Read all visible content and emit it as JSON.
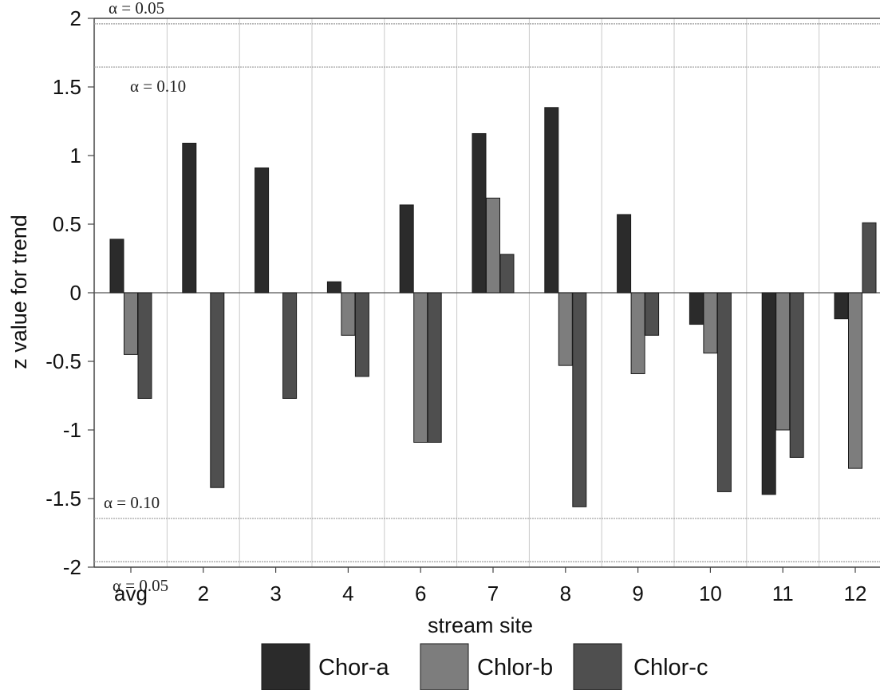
{
  "chart_data": {
    "type": "bar",
    "title": "",
    "xlabel": "stream site",
    "ylabel": "z value for trend",
    "ylim": [
      -2,
      2
    ],
    "yticks": [
      {
        "value": 2,
        "label": "2"
      },
      {
        "value": 1.5,
        "label": "1.5"
      },
      {
        "value": 1,
        "label": "1"
      },
      {
        "value": 0.5,
        "label": "0.5"
      },
      {
        "value": 0,
        "label": "0"
      },
      {
        "value": -0.5,
        "label": "-0.5"
      },
      {
        "value": -1,
        "label": "-1"
      },
      {
        "value": -1.5,
        "label": "-1.5"
      },
      {
        "value": -2,
        "label": "-2"
      }
    ],
    "categories": [
      "avg",
      "2",
      "3",
      "4",
      "6",
      "7",
      "8",
      "9",
      "10",
      "11",
      "12"
    ],
    "series": [
      {
        "name": "Chor-a",
        "color": "#2b2b2b",
        "values": [
          0.39,
          1.09,
          0.91,
          0.08,
          0.64,
          1.16,
          1.35,
          0.57,
          -0.23,
          -1.47,
          -0.19
        ]
      },
      {
        "name": "Chlor-b",
        "color": "#7d7d7d",
        "values": [
          -0.45,
          0,
          0,
          -0.31,
          -1.09,
          0.69,
          -0.53,
          -0.59,
          -0.44,
          -1.0,
          -1.28
        ]
      },
      {
        "name": "Chlor-c",
        "color": "#4f4f4f",
        "values": [
          -0.77,
          -1.42,
          -0.77,
          -0.61,
          -1.09,
          0.28,
          -1.56,
          -0.31,
          -1.45,
          -1.2,
          0.51
        ]
      }
    ],
    "significance_lines": [
      {
        "value": 1.96,
        "label": "α = 0.05"
      },
      {
        "value": 1.645,
        "label": "α = 0.10"
      },
      {
        "value": -1.645,
        "label": "α = 0.10"
      },
      {
        "value": -1.96,
        "label": "α = 0.05"
      }
    ],
    "grid": true,
    "legend_position": "bottom"
  }
}
